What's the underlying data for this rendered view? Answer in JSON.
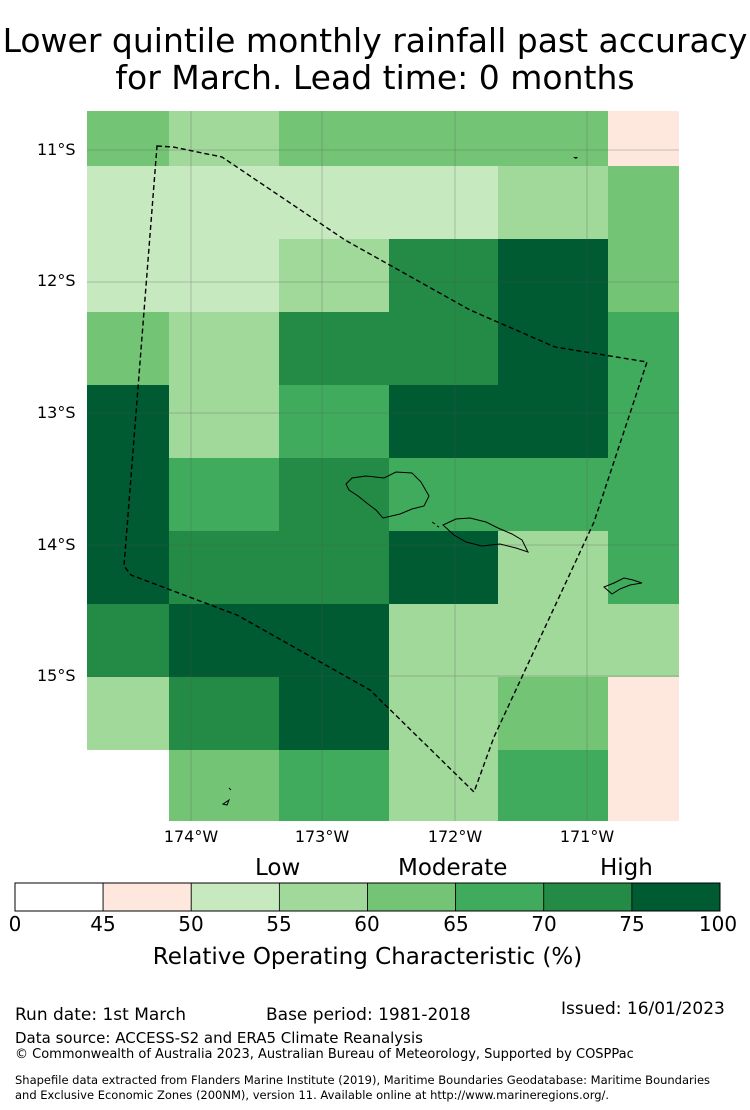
{
  "title_line1": "Lower quintile monthly rainfall past accuracy",
  "title_line2": "for March. Lead time: 0 months",
  "axis": {
    "lat_labels": [
      "11°S",
      "12°S",
      "13°S",
      "14°S",
      "15°S"
    ],
    "lon_labels": [
      "174°W",
      "173°W",
      "172°W",
      "171°W"
    ]
  },
  "map_grid": {
    "rows": [
      [
        60,
        55,
        60,
        60,
        60,
        45
      ],
      [
        50,
        50,
        50,
        50,
        55,
        60
      ],
      [
        50,
        50,
        55,
        70,
        75,
        60
      ],
      [
        60,
        55,
        70,
        70,
        75,
        65
      ],
      [
        75,
        55,
        65,
        75,
        75,
        65
      ],
      [
        75,
        65,
        70,
        65,
        65,
        65
      ],
      [
        75,
        70,
        70,
        75,
        55,
        65
      ],
      [
        70,
        75,
        75,
        55,
        55,
        55
      ],
      [
        55,
        70,
        75,
        55,
        60,
        45
      ],
      [
        null,
        60,
        65,
        55,
        65,
        45
      ]
    ]
  },
  "colorbar": {
    "category_labels": [
      "Low",
      "Moderate",
      "High"
    ],
    "ticks": [
      "0",
      "45",
      "50",
      "55",
      "60",
      "65",
      "70",
      "75",
      "100"
    ],
    "colors": [
      "#ffffff",
      "#fee8de",
      "#c7e9c0",
      "#a1d99b",
      "#74c476",
      "#41ab5d",
      "#238b45",
      "#005a32"
    ],
    "label": "Relative Operating Characteristic (%)"
  },
  "footer": {
    "run_date": "Run date: 1st March",
    "base_period": "Base period: 1981-2018",
    "issued": "Issued: 16/01/2023",
    "data_source": "Data source: ACCESS-S2 and ERA5 Climate Reanalysis",
    "copyright": "© Commonwealth of Australia 2023, Australian Bureau of Meteorology, Supported by COSPPac",
    "shapefile_line1": "Shapefile data extracted from Flanders Marine Institute (2019), Maritime Boundaries Geodatabase: Maritime Boundaries",
    "shapefile_line2": "and Exclusive Economic Zones (200NM), version 11. Available online at http://www.marineregions.org/."
  }
}
